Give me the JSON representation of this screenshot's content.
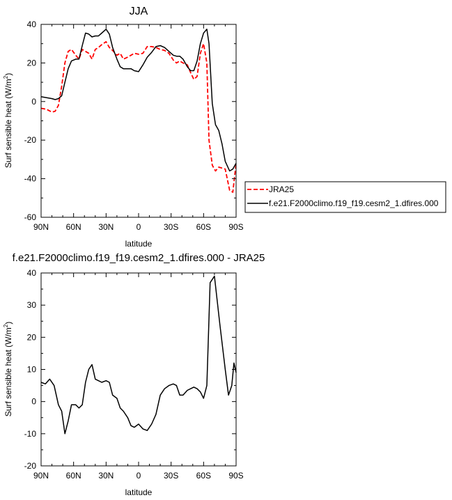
{
  "chart_data": [
    {
      "type": "line",
      "title": "JJA",
      "xlabel": "latitude",
      "ylabel": "Surf sensible heat (W/m²)",
      "ylabel_main": "Surf sensible heat (W/m",
      "ylabel_sup": "2",
      "ylabel_end": ")",
      "xlim": [
        90,
        -90
      ],
      "ylim": [
        -60,
        40
      ],
      "xticks": [
        90,
        60,
        30,
        0,
        -30,
        -60,
        -90
      ],
      "xtick_labels": [
        "90N",
        "60N",
        "30N",
        "0",
        "30S",
        "60S",
        "90S"
      ],
      "yticks": [
        40,
        20,
        0,
        -20,
        -40,
        -60
      ],
      "ytick_labels": [
        "40",
        "20",
        "0",
        "-20",
        "-40",
        "-60"
      ],
      "legend": {
        "placement": "right",
        "entries": [
          "JRA25",
          "f.e21.F2000climo.f19_f19.cesm2_1.dfires.000"
        ]
      },
      "series": [
        {
          "name": "JRA25",
          "color": "#ff0000",
          "dash": "dashed",
          "x": [
            90,
            85,
            80,
            77,
            74,
            71,
            68,
            65,
            62,
            58,
            55,
            52,
            49,
            46,
            43,
            40,
            37,
            34,
            30,
            27,
            24,
            20,
            17,
            14,
            10,
            7,
            4,
            0,
            -4,
            -8,
            -12,
            -16,
            -20,
            -24,
            -28,
            -32,
            -35,
            -38,
            -41,
            -45,
            -48,
            -51,
            -54,
            -57,
            -60,
            -63,
            -65,
            -68,
            -71,
            -74,
            -77,
            -80,
            -84,
            -87,
            -90
          ],
          "y": [
            -3.5,
            -4,
            -5.5,
            -5,
            -2,
            8,
            20,
            26,
            27,
            24,
            22,
            27,
            26,
            25,
            22,
            27,
            28,
            29.5,
            31,
            28,
            26.5,
            24,
            25,
            22,
            23,
            24,
            25,
            24.5,
            25,
            28.5,
            28.5,
            28,
            27,
            26.5,
            25,
            21.5,
            20,
            21,
            20,
            19,
            15,
            11.5,
            13,
            25,
            30,
            20,
            -20,
            -33,
            -36,
            -34,
            -34.5,
            -35,
            -46,
            -47,
            -32
          ]
        },
        {
          "name": "f.e21.F2000climo.f19_f19.cesm2_1.dfires.000",
          "color": "#000000",
          "dash": "solid",
          "x": [
            90,
            85,
            80,
            77,
            74,
            71,
            68,
            65,
            62,
            58,
            55,
            52,
            49,
            46,
            43,
            40,
            37,
            34,
            30,
            27,
            24,
            20,
            17,
            14,
            10,
            7,
            4,
            0,
            -4,
            -8,
            -12,
            -16,
            -20,
            -24,
            -28,
            -32,
            -35,
            -38,
            -41,
            -45,
            -48,
            -51,
            -54,
            -57,
            -60,
            -63,
            -65,
            -68,
            -71,
            -74,
            -77,
            -80,
            -84,
            -87,
            -90
          ],
          "y": [
            2.5,
            2,
            1.5,
            1,
            1.5,
            3,
            10,
            17,
            21,
            22,
            22,
            29,
            35.5,
            35,
            33.5,
            34,
            34,
            35.5,
            37.5,
            35,
            28,
            22,
            18,
            17,
            17,
            17,
            16,
            15.5,
            19,
            23,
            25.5,
            28.5,
            29,
            28,
            26,
            24,
            23.5,
            23.5,
            22,
            18,
            16,
            16,
            21,
            30,
            35.5,
            37.5,
            30,
            -1,
            -12,
            -15,
            -22,
            -31,
            -36,
            -35,
            -32
          ]
        }
      ]
    },
    {
      "type": "line",
      "title": "f.e21.F2000climo.f19_f19.cesm2_1.dfires.000 - JRA25",
      "xlabel": "latitude",
      "ylabel": "Surf sensible heat (W/m²)",
      "ylabel_main": "Surf sensible heat (W/m",
      "ylabel_sup": "2",
      "ylabel_end": ")",
      "xlim": [
        90,
        -90
      ],
      "ylim": [
        -20,
        40
      ],
      "xticks": [
        90,
        60,
        30,
        0,
        -30,
        -60,
        -90
      ],
      "xtick_labels": [
        "90N",
        "60N",
        "30N",
        "0",
        "30S",
        "60S",
        "90S"
      ],
      "yticks": [
        40,
        30,
        20,
        10,
        0,
        -10,
        -20
      ],
      "ytick_labels": [
        "40",
        "30",
        "20",
        "10",
        "0",
        "-10",
        "-20"
      ],
      "series": [
        {
          "color": "#000000",
          "dash": "solid",
          "x": [
            90,
            86,
            82,
            78,
            74,
            71,
            68,
            65,
            62,
            58,
            55,
            52,
            49,
            46,
            43,
            40,
            37,
            34,
            30,
            27,
            24,
            20,
            17,
            14,
            10,
            7,
            4,
            0,
            -4,
            -8,
            -12,
            -16,
            -20,
            -24,
            -28,
            -32,
            -35,
            -38,
            -41,
            -45,
            -48,
            -51,
            -54,
            -57,
            -60,
            -63,
            -66,
            -70,
            -75,
            -80,
            -83,
            -86,
            -88,
            -90
          ],
          "y": [
            6,
            5.5,
            7,
            5,
            -1,
            -3,
            -10,
            -6,
            -1,
            -1,
            -2,
            -1,
            6,
            10,
            11.5,
            7,
            6.5,
            6,
            6.5,
            6,
            2,
            1,
            -2,
            -3,
            -5,
            -7.5,
            -8,
            -7,
            -8.5,
            -9,
            -7,
            -4,
            2,
            4,
            5,
            5.5,
            5,
            2,
            2,
            3.5,
            4,
            4.5,
            4,
            3,
            1,
            5,
            37,
            39,
            24,
            10,
            2,
            5,
            12,
            9
          ]
        }
      ]
    }
  ]
}
